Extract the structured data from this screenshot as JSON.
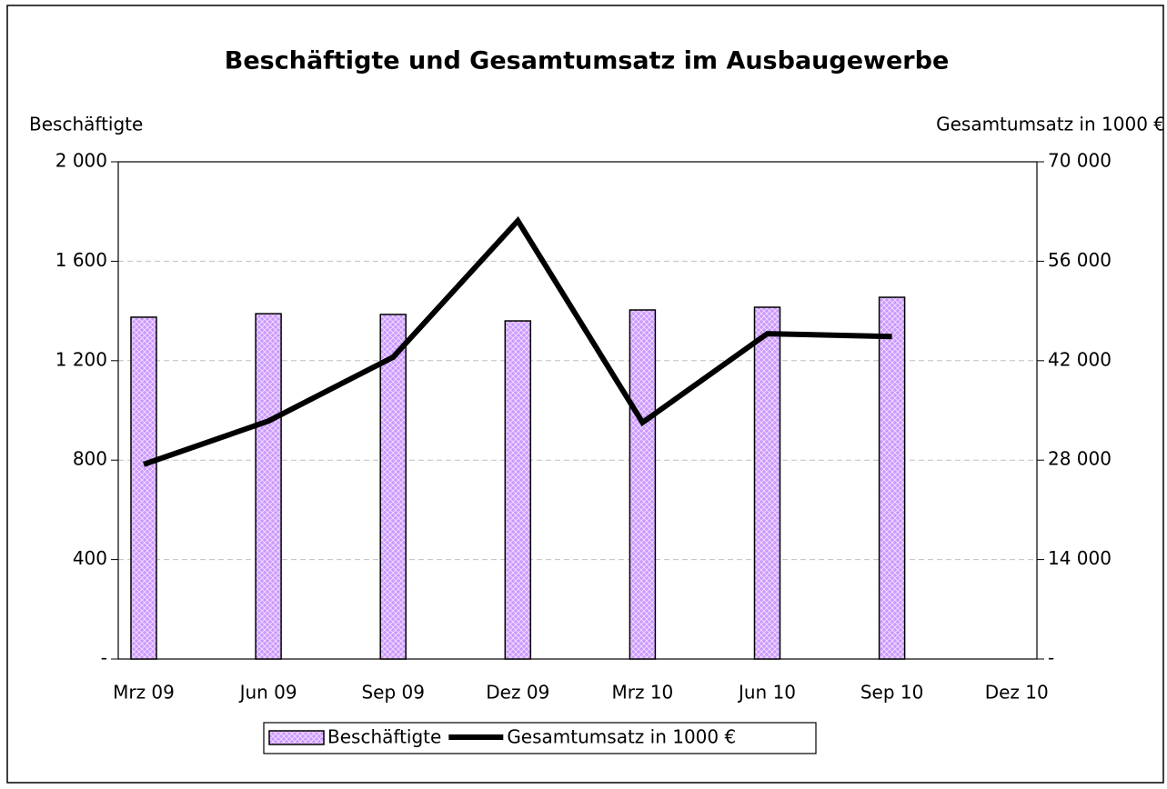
{
  "chart_data": {
    "type": "bar_line",
    "title": "Beschäftigte und Gesamtumsatz im Ausbaugewerbe",
    "y_label": "Beschäftigte",
    "y2_label": "Gesamtumsatz in 1000 €",
    "categories": [
      "Mrz 09",
      "Jun 09",
      "Sep 09",
      "Dez 09",
      "Mrz 10",
      "Jun 10",
      "Sep 10",
      "Dez 10"
    ],
    "series": [
      {
        "name": "Beschäftigte",
        "type": "bar",
        "color": "#cc99ff",
        "values": [
          1375,
          1389,
          1386,
          1360,
          1404,
          1415,
          1455,
          null
        ]
      },
      {
        "name": "Gesamtumsatz in 1000 €",
        "type": "line",
        "axis": "y2",
        "color": "#000000",
        "values": [
          27400,
          33500,
          42500,
          61700,
          33300,
          45800,
          45400,
          null
        ]
      }
    ],
    "ylim": [
      0,
      2000
    ],
    "yticks": [
      {
        "value": 0,
        "label": "-"
      },
      400,
      800,
      {
        "value": 1200,
        "label": "1 200"
      },
      {
        "value": 1600,
        "label": "1 600"
      },
      {
        "value": 2000,
        "label": "2 000"
      }
    ],
    "y2lim": [
      0,
      70000
    ],
    "y2ticks": [
      {
        "value": 0,
        "label": "-"
      },
      {
        "value": 14000,
        "label": "14 000"
      },
      {
        "value": 28000,
        "label": "28 000"
      },
      {
        "value": 42000,
        "label": "42 000"
      },
      {
        "value": 56000,
        "label": "56 000"
      },
      {
        "value": 70000,
        "label": "70 000"
      }
    ],
    "grid": true,
    "legend": "bottom"
  }
}
